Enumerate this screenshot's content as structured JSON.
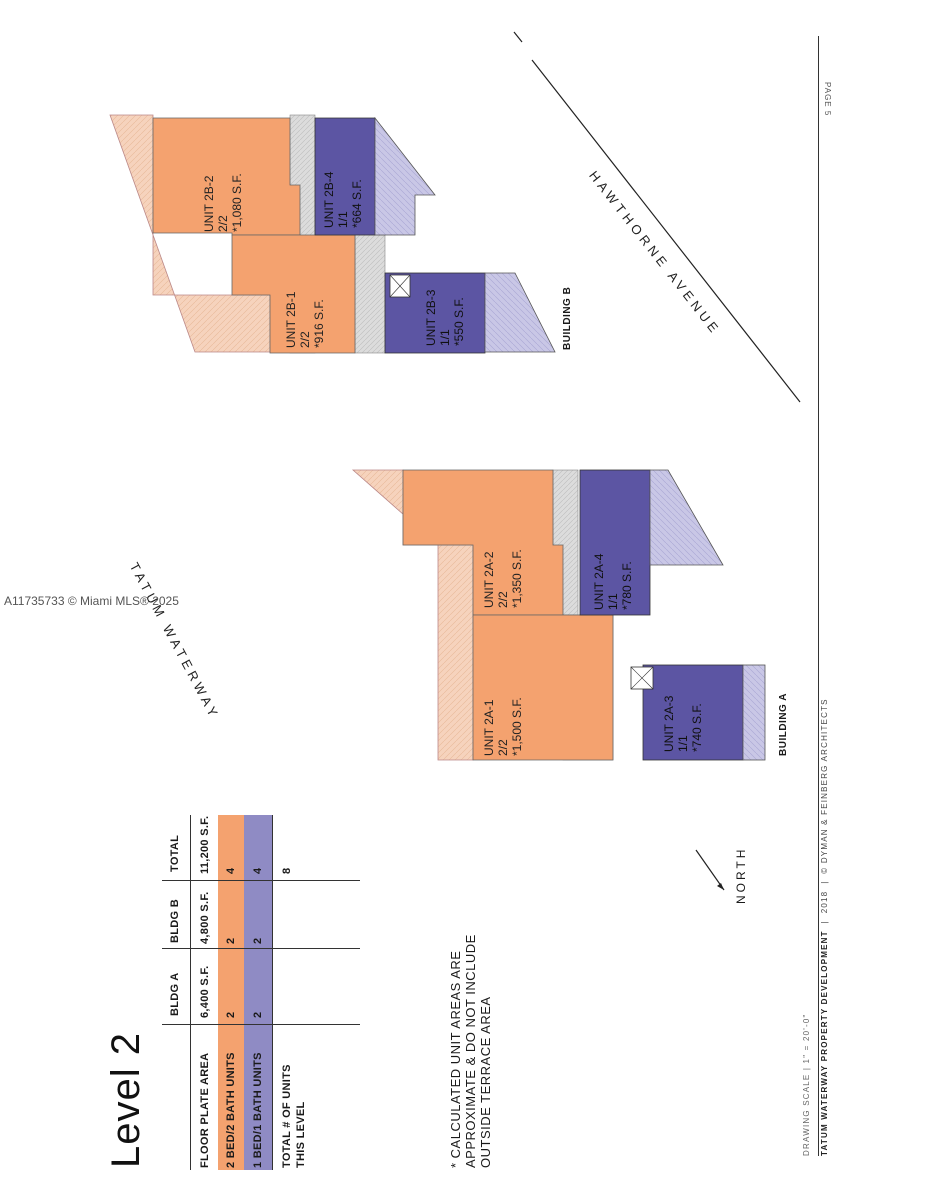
{
  "watermark": "A11735733 © Miami MLS® 2025",
  "page_label": "PAGE 5",
  "level_title": "Level 2",
  "table": {
    "headers": [
      "BLDG A",
      "BLDG B",
      "TOTAL"
    ],
    "rows": [
      {
        "label": "FLOOR PLATE AREA",
        "values": [
          "6,400 S.F.",
          "4,800 S.F.",
          "11,200 S.F."
        ],
        "color": "#ffffff"
      },
      {
        "label": "2 BED/2 BATH UNITS",
        "values": [
          "2",
          "2",
          "4"
        ],
        "color": "#f4a26f"
      },
      {
        "label": "1 BED/1 BATH UNITS",
        "values": [
          "2",
          "2",
          "4"
        ],
        "color": "#8f8bc4"
      },
      {
        "label_line1": "TOTAL # OF UNITS",
        "label_line2": "THIS LEVEL",
        "values": [
          "",
          "",
          "8"
        ],
        "color": "#ffffff"
      }
    ]
  },
  "note": {
    "line1": "* CALCULATED UNIT AREAS ARE",
    "line2": "APPROXIMATE & DO NOT INCLUDE",
    "line3": "OUTSIDE TERRACE AREA"
  },
  "north_label": "NORTH",
  "streets": {
    "waterway": "TATUM WATERWAY",
    "avenue": "HAWTHORNE AVENUE"
  },
  "buildings": {
    "a": {
      "label": "BUILDING A",
      "units": [
        {
          "name": "UNIT 2A-1",
          "beds": "2/2",
          "area": "*1,500 S.F."
        },
        {
          "name": "UNIT 2A-2",
          "beds": "2/2",
          "area": "*1,350 S.F."
        },
        {
          "name": "UNIT 2A-3",
          "beds": "1/1",
          "area": "*740 S.F."
        },
        {
          "name": "UNIT 2A-4",
          "beds": "1/1",
          "area": "*780 S.F."
        }
      ]
    },
    "b": {
      "label": "BUILDING B",
      "units": [
        {
          "name": "UNIT 2B-1",
          "beds": "2/2",
          "area": "*916 S.F."
        },
        {
          "name": "UNIT 2B-2",
          "beds": "2/2",
          "area": "*1,080 S.F."
        },
        {
          "name": "UNIT 2B-3",
          "beds": "1/1",
          "area": "*550 S.F."
        },
        {
          "name": "UNIT 2B-4",
          "beds": "1/1",
          "area": "*664 S.F."
        }
      ]
    }
  },
  "footer": {
    "scale": "DRAWING SCALE  |  1\" = 20'-0\"",
    "project": "TATUM WATERWAY PROPERTY DEVELOPMENT",
    "year": "2018",
    "architect": "© DYMAN & FEINBERG ARCHITECTS"
  },
  "colors": {
    "two_bed": "#f4a26f",
    "one_bed": "#5c55a3",
    "one_bed_table": "#8f8bc4",
    "terrace_orange": "#f6d3bd",
    "terrace_purple": "#c9c7e6",
    "corridor": "#d9d9d9"
  }
}
